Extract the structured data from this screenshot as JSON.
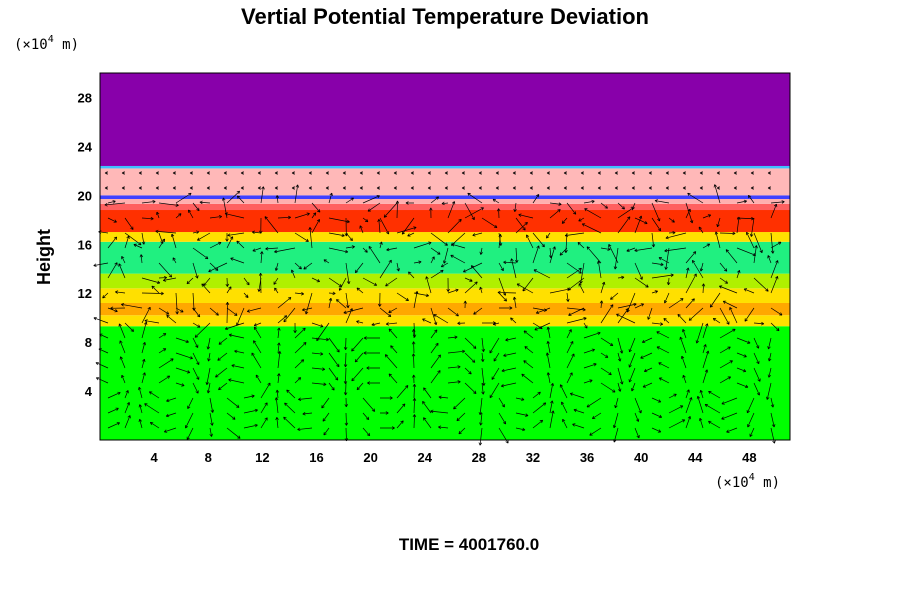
{
  "chart_data": {
    "type": "heatmap",
    "title": "Vertial Potential Temperature Deviation",
    "ylabel": "Height",
    "xlabel": "",
    "x_unit_prefix": "(×10",
    "x_unit_exp": "4",
    "x_unit_suffix": " m)",
    "y_unit_prefix": "(×10",
    "y_unit_exp": "4",
    "y_unit_suffix": " m)",
    "xlim": [
      0,
      51
    ],
    "ylim": [
      0,
      30
    ],
    "x_ticks": [
      4,
      8,
      12,
      16,
      20,
      24,
      28,
      32,
      36,
      40,
      44,
      48
    ],
    "y_ticks": [
      4,
      8,
      12,
      16,
      20,
      24,
      28
    ],
    "footer": "TIME = 4001760.0",
    "layers": [
      {
        "from": 0,
        "to": 9.3,
        "color": "#00ff00"
      },
      {
        "from": 9.3,
        "to": 10.2,
        "color": "#ffe000"
      },
      {
        "from": 10.2,
        "to": 11.2,
        "color": "#ffa800"
      },
      {
        "from": 11.2,
        "to": 12.4,
        "color": "#ffe000"
      },
      {
        "from": 12.4,
        "to": 13.6,
        "color": "#b0f000"
      },
      {
        "from": 13.6,
        "to": 16.2,
        "color": "#20f080"
      },
      {
        "from": 16.2,
        "to": 17.0,
        "color": "#ffe000"
      },
      {
        "from": 17.0,
        "to": 18.8,
        "color": "#ff3000"
      },
      {
        "from": 18.8,
        "to": 19.3,
        "color": "#ff6060"
      },
      {
        "from": 19.3,
        "to": 19.7,
        "color": "#ffb0b0"
      },
      {
        "from": 19.7,
        "to": 20.0,
        "color": "#4040ff"
      },
      {
        "from": 20.0,
        "to": 22.2,
        "color": "#ffb8b8"
      },
      {
        "from": 22.2,
        "to": 22.4,
        "color": "#40c0ff"
      },
      {
        "from": 22.4,
        "to": 30,
        "color": "#8800aa"
      }
    ]
  }
}
